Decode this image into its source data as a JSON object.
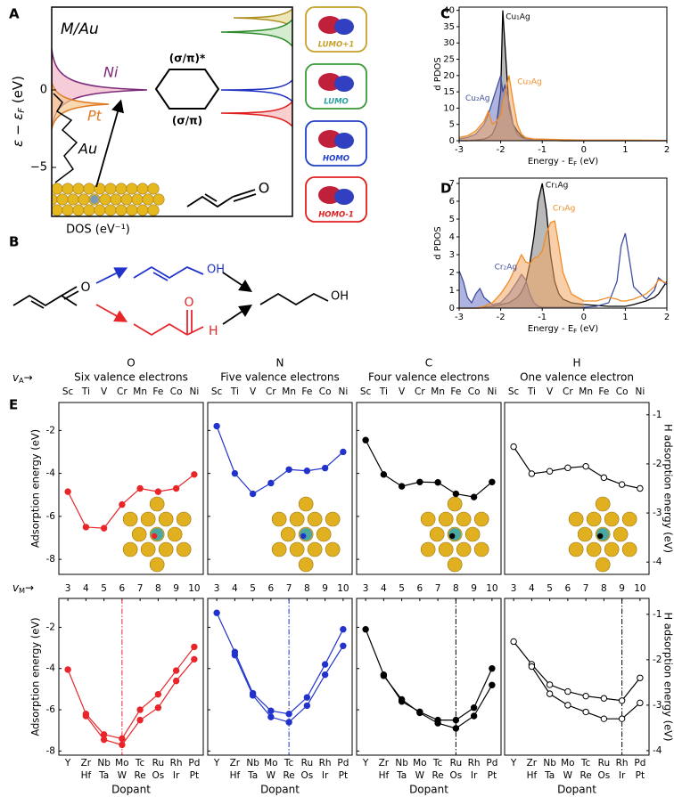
{
  "panel_labels": [
    "A",
    "B",
    "C",
    "D",
    "E"
  ],
  "panel_a": {
    "title": "M/Au",
    "ylabel": [
      "ε − ε",
      "F",
      " (eV)"
    ],
    "yticks": [
      "0",
      "−5"
    ],
    "xlabel": "DOS (eV⁻¹)",
    "metal_labels": [
      "Ni",
      "Pt",
      "Au"
    ],
    "orbital_labels": [
      "(σ/π)*",
      "(σ/π)"
    ],
    "molecule_atom": "O",
    "orbitals": [
      "LUMO+1",
      "LUMO",
      "HOMO",
      "HOMO-1"
    ]
  },
  "panel_b": {
    "atoms": [
      "O",
      "OH",
      "O",
      "H",
      "OH"
    ]
  },
  "chart_data": [
    {
      "type": "area",
      "xlabel": [
        "Energy - E",
        "F",
        " (eV)"
      ],
      "ylabel": "d PDOS",
      "x": [
        -3,
        -2.8,
        -2.6,
        -2.4,
        -2.3,
        -2.2,
        -2.1,
        -2.0,
        -1.95,
        -1.9,
        -1.8,
        -1.7,
        -1.6,
        -1.5,
        -1.4,
        -1.2,
        -1.0,
        -0.5,
        0,
        1,
        2
      ],
      "xlim": [
        -3,
        2
      ],
      "xticks": [
        -3,
        -2,
        -1,
        0,
        1,
        2
      ],
      "ylim": [
        0,
        41
      ],
      "yticks": [
        0,
        5,
        10,
        15,
        20,
        25,
        30,
        35,
        40
      ],
      "series": [
        {
          "name": "Cu₁Ag",
          "color": "#000000",
          "fill": "#808080",
          "values": [
            0,
            0,
            0.2,
            0.5,
            1,
            2,
            5,
            15,
            40,
            30,
            10,
            5,
            3,
            1.5,
            0.5,
            0.2,
            0.1,
            0,
            0,
            0,
            0
          ]
        },
        {
          "name": "Cu₂Ag",
          "color": "#4050a0",
          "fill": "#6e75c4",
          "values": [
            0.5,
            1,
            2,
            5,
            8,
            12,
            16,
            20,
            15,
            17,
            12,
            5,
            2,
            1,
            0.5,
            0.3,
            0.2,
            0,
            0,
            0,
            0
          ]
        },
        {
          "name": "Cu₃Ag",
          "color": "#f08c28",
          "fill": "#f3a860",
          "values": [
            1,
            1.5,
            3,
            6,
            9,
            5,
            6,
            8,
            12,
            14,
            20,
            12,
            5,
            2,
            1,
            0.5,
            0.5,
            0.3,
            0.2,
            0.2,
            0.1
          ]
        }
      ]
    },
    {
      "type": "area",
      "xlabel": [
        "Energy - E",
        "F",
        " (eV)"
      ],
      "ylabel": "d PDOS",
      "x": [
        -3,
        -2.9,
        -2.8,
        -2.7,
        -2.6,
        -2.5,
        -2.4,
        -2.2,
        -2.0,
        -1.8,
        -1.6,
        -1.5,
        -1.4,
        -1.3,
        -1.2,
        -1.1,
        -1.0,
        -0.9,
        -0.8,
        -0.7,
        -0.6,
        -0.5,
        -0.3,
        0,
        0.3,
        0.6,
        0.8,
        0.9,
        1.0,
        1.2,
        1.5,
        1.7,
        1.8,
        2.0
      ],
      "xlim": [
        -3,
        2
      ],
      "xticks": [
        -3,
        -2,
        -1,
        0,
        1,
        2
      ],
      "ylim": [
        0,
        7.3
      ],
      "yticks": [
        0,
        1,
        2,
        3,
        4,
        5,
        6,
        7
      ],
      "series": [
        {
          "name": "Cr₁Ag",
          "color": "#000000",
          "fill": "#808080",
          "values": [
            0,
            0,
            0,
            0,
            0,
            0,
            0.05,
            0.1,
            0.2,
            0.3,
            0.6,
            0.9,
            1.4,
            2.5,
            4,
            6,
            7,
            5.5,
            3,
            1.5,
            0.8,
            0.5,
            0.3,
            0.2,
            0.15,
            0.1,
            0.1,
            0.1,
            0.1,
            0.2,
            0.4,
            0.6,
            0.8,
            1.5
          ]
        },
        {
          "name": "Cr₂Ag",
          "color": "#4050a0",
          "fill": "#6e75c4",
          "values": [
            2.1,
            1.5,
            0.6,
            0.3,
            0.8,
            1.1,
            0.6,
            0.2,
            0.3,
            0.8,
            1.5,
            1.9,
            1.6,
            0.8,
            0.3,
            0.1,
            0.05,
            0.05,
            0.05,
            0.05,
            0.05,
            0.05,
            0.05,
            0.05,
            0.1,
            0.3,
            1.5,
            3.5,
            4.2,
            1.2,
            0.5,
            1.0,
            1.7,
            1.3
          ]
        },
        {
          "name": "Cr₃Ag",
          "color": "#f08c28",
          "fill": "#f3a860",
          "values": [
            0,
            0,
            0,
            0,
            0,
            0.05,
            0.1,
            0.3,
            0.8,
            1.5,
            2.5,
            3,
            2.6,
            2.5,
            2.8,
            2.9,
            3.2,
            4.2,
            4.8,
            4.9,
            3.5,
            2,
            0.8,
            0.4,
            0.4,
            0.6,
            0.5,
            0.4,
            0.4,
            0.5,
            0.8,
            1.2,
            1.6,
            1.4
          ]
        }
      ]
    },
    {
      "type": "line",
      "title": "O",
      "subtitle": "Six valence electrons",
      "x_axis_symbol": {
        "symbol": "v",
        "subscript": "A",
        "arrow": "→"
      },
      "categories": [
        "Sc",
        "Ti",
        "V",
        "Cr",
        "Mn",
        "Fe",
        "Co",
        "Ni"
      ],
      "ylabel": "Adsorption energy (eV)",
      "ylim": [
        -8.7,
        -0.7
      ],
      "yticks": [
        -2,
        -4,
        -6,
        -8
      ],
      "series": [
        {
          "color": "#e8262a",
          "marker": "filled",
          "values": [
            -4.85,
            -6.5,
            -6.55,
            -5.45,
            -4.7,
            -4.85,
            -4.7,
            -4.05
          ]
        }
      ]
    },
    {
      "type": "line",
      "title": "N",
      "subtitle": "Five valence electrons",
      "categories": [
        "Sc",
        "Ti",
        "V",
        "Cr",
        "Mn",
        "Fe",
        "Co",
        "Ni"
      ],
      "ylim": [
        -8.7,
        -0.7
      ],
      "yticks": [
        -2,
        -4,
        -6,
        -8
      ],
      "series": [
        {
          "color": "#2233cc",
          "marker": "filled",
          "values": [
            -1.8,
            -4.0,
            -4.95,
            -4.45,
            -3.82,
            -3.88,
            -3.75,
            -3.0
          ]
        }
      ]
    },
    {
      "type": "line",
      "title": "C",
      "subtitle": "Four valence electrons",
      "categories": [
        "Sc",
        "Ti",
        "V",
        "Cr",
        "Mn",
        "Fe",
        "Co",
        "Ni"
      ],
      "ylim": [
        -8.7,
        -0.7
      ],
      "yticks": [
        -2,
        -4,
        -6,
        -8
      ],
      "series": [
        {
          "color": "#000000",
          "marker": "filled",
          "values": [
            -2.45,
            -4.05,
            -4.6,
            -4.4,
            -4.42,
            -4.95,
            -5.1,
            -4.4
          ]
        }
      ]
    },
    {
      "type": "line",
      "title": "H",
      "subtitle": "One valence electron",
      "categories": [
        "Sc",
        "Ti",
        "V",
        "Cr",
        "Mn",
        "Fe",
        "Co",
        "Ni"
      ],
      "ylabel": "H adsorption energy (eV)",
      "yaxis": "right",
      "ylim": [
        -4.25,
        -0.75
      ],
      "yticks": [
        -1,
        -2,
        -3,
        -4
      ],
      "series": [
        {
          "color": "#000000",
          "marker": "open",
          "values": [
            -1.65,
            -2.2,
            -2.15,
            -2.08,
            -2.05,
            -2.28,
            -2.42,
            -2.5
          ]
        }
      ]
    },
    {
      "type": "line",
      "x_axis_symbol": {
        "symbol": "v",
        "subscript": "M",
        "arrow": "→"
      },
      "x": [
        3,
        4,
        5,
        6,
        7,
        8,
        9,
        10
      ],
      "xlim": [
        2.5,
        10.5
      ],
      "xticks": [
        3,
        4,
        5,
        6,
        7,
        8,
        9,
        10
      ],
      "categories": [
        "Y",
        "Zr",
        "Nb",
        "Mo",
        "Tc",
        "Ru",
        "Rh",
        "Pd"
      ],
      "categories_2": [
        null,
        "Hf",
        "Ta",
        "W",
        "Re",
        "Os",
        "Ir",
        "Pt"
      ],
      "xlabel": "Dopant",
      "ylabel": "Adsorption energy (eV)",
      "ylim": [
        -8.2,
        -0.6
      ],
      "yticks": [
        -2,
        -4,
        -6,
        -8
      ],
      "vline": 6,
      "series": [
        {
          "color": "#e8262a",
          "marker": "filled",
          "values": [
            -4.05,
            -6.2,
            -7.2,
            -7.4,
            -6.0,
            -5.25,
            -4.1,
            -2.95
          ]
        },
        {
          "color": "#e8262a",
          "marker": "filled",
          "values": [
            null,
            -6.3,
            -7.45,
            -7.7,
            -6.5,
            -5.9,
            -4.6,
            -3.55
          ]
        }
      ]
    },
    {
      "type": "line",
      "x": [
        3,
        4,
        5,
        6,
        7,
        8,
        9,
        10
      ],
      "xlim": [
        2.5,
        10.5
      ],
      "xticks": [
        3,
        4,
        5,
        6,
        7,
        8,
        9,
        10
      ],
      "categories": [
        "Y",
        "Zr",
        "Nb",
        "Mo",
        "Tc",
        "Ru",
        "Rh",
        "Pd"
      ],
      "categories_2": [
        null,
        "Hf",
        "Ta",
        "W",
        "Re",
        "Os",
        "Ir",
        "Pt"
      ],
      "xlabel": "Dopant",
      "ylim": [
        -8.2,
        -0.6
      ],
      "yticks": [
        -2,
        -4,
        -6,
        -8
      ],
      "vline": 7,
      "series": [
        {
          "color": "#2233cc",
          "marker": "filled",
          "values": [
            -1.3,
            -3.2,
            -5.2,
            -6.05,
            -6.2,
            -5.4,
            -3.8,
            -2.1
          ]
        },
        {
          "color": "#2233cc",
          "marker": "filled",
          "values": [
            null,
            -3.35,
            -5.3,
            -6.35,
            -6.6,
            -5.8,
            -4.3,
            -2.9
          ]
        }
      ]
    },
    {
      "type": "line",
      "x": [
        3,
        4,
        5,
        6,
        7,
        8,
        9,
        10
      ],
      "xlim": [
        2.5,
        10.5
      ],
      "xticks": [
        3,
        4,
        5,
        6,
        7,
        8,
        9,
        10
      ],
      "categories": [
        "Y",
        "Zr",
        "Nb",
        "Mo",
        "Tc",
        "Ru",
        "Rh",
        "Pd"
      ],
      "categories_2": [
        null,
        "Hf",
        "Ta",
        "W",
        "Re",
        "Os",
        "Ir",
        "Pt"
      ],
      "xlabel": "Dopant",
      "ylim": [
        -8.2,
        -0.6
      ],
      "yticks": [
        -2,
        -4,
        -6,
        -8
      ],
      "vline": 8,
      "series": [
        {
          "color": "#000000",
          "marker": "filled",
          "values": [
            -2.1,
            -4.3,
            -5.6,
            -6.1,
            -6.5,
            -6.5,
            -5.9,
            -4.0
          ]
        },
        {
          "color": "#000000",
          "marker": "filled",
          "values": [
            null,
            -4.35,
            -5.5,
            -6.15,
            -6.65,
            -6.9,
            -6.3,
            -4.8
          ]
        }
      ]
    },
    {
      "type": "line",
      "x": [
        3,
        4,
        5,
        6,
        7,
        8,
        9,
        10
      ],
      "xlim": [
        2.5,
        10.5
      ],
      "xticks": [
        3,
        4,
        5,
        6,
        7,
        8,
        9,
        10
      ],
      "categories": [
        "Y",
        "Zr",
        "Nb",
        "Mo",
        "Tc",
        "Ru",
        "Rh",
        "Pd"
      ],
      "categories_2": [
        null,
        "Hf",
        "Ta",
        "W",
        "Re",
        "Os",
        "Ir",
        "Pt"
      ],
      "xlabel": "Dopant",
      "ylabel": "H adsorption energy (eV)",
      "yaxis": "right",
      "ylim": [
        -4.1,
        -0.65
      ],
      "yticks": [
        -1,
        -2,
        -3,
        -4
      ],
      "vline": 9,
      "series": [
        {
          "color": "#000000",
          "marker": "open",
          "values": [
            -1.6,
            -2.1,
            -2.55,
            -2.7,
            -2.8,
            -2.85,
            -2.9,
            -2.4
          ]
        },
        {
          "color": "#000000",
          "marker": "open",
          "values": [
            null,
            -2.15,
            -2.75,
            -3.0,
            -3.15,
            -3.3,
            -3.3,
            -2.95
          ]
        }
      ]
    }
  ]
}
